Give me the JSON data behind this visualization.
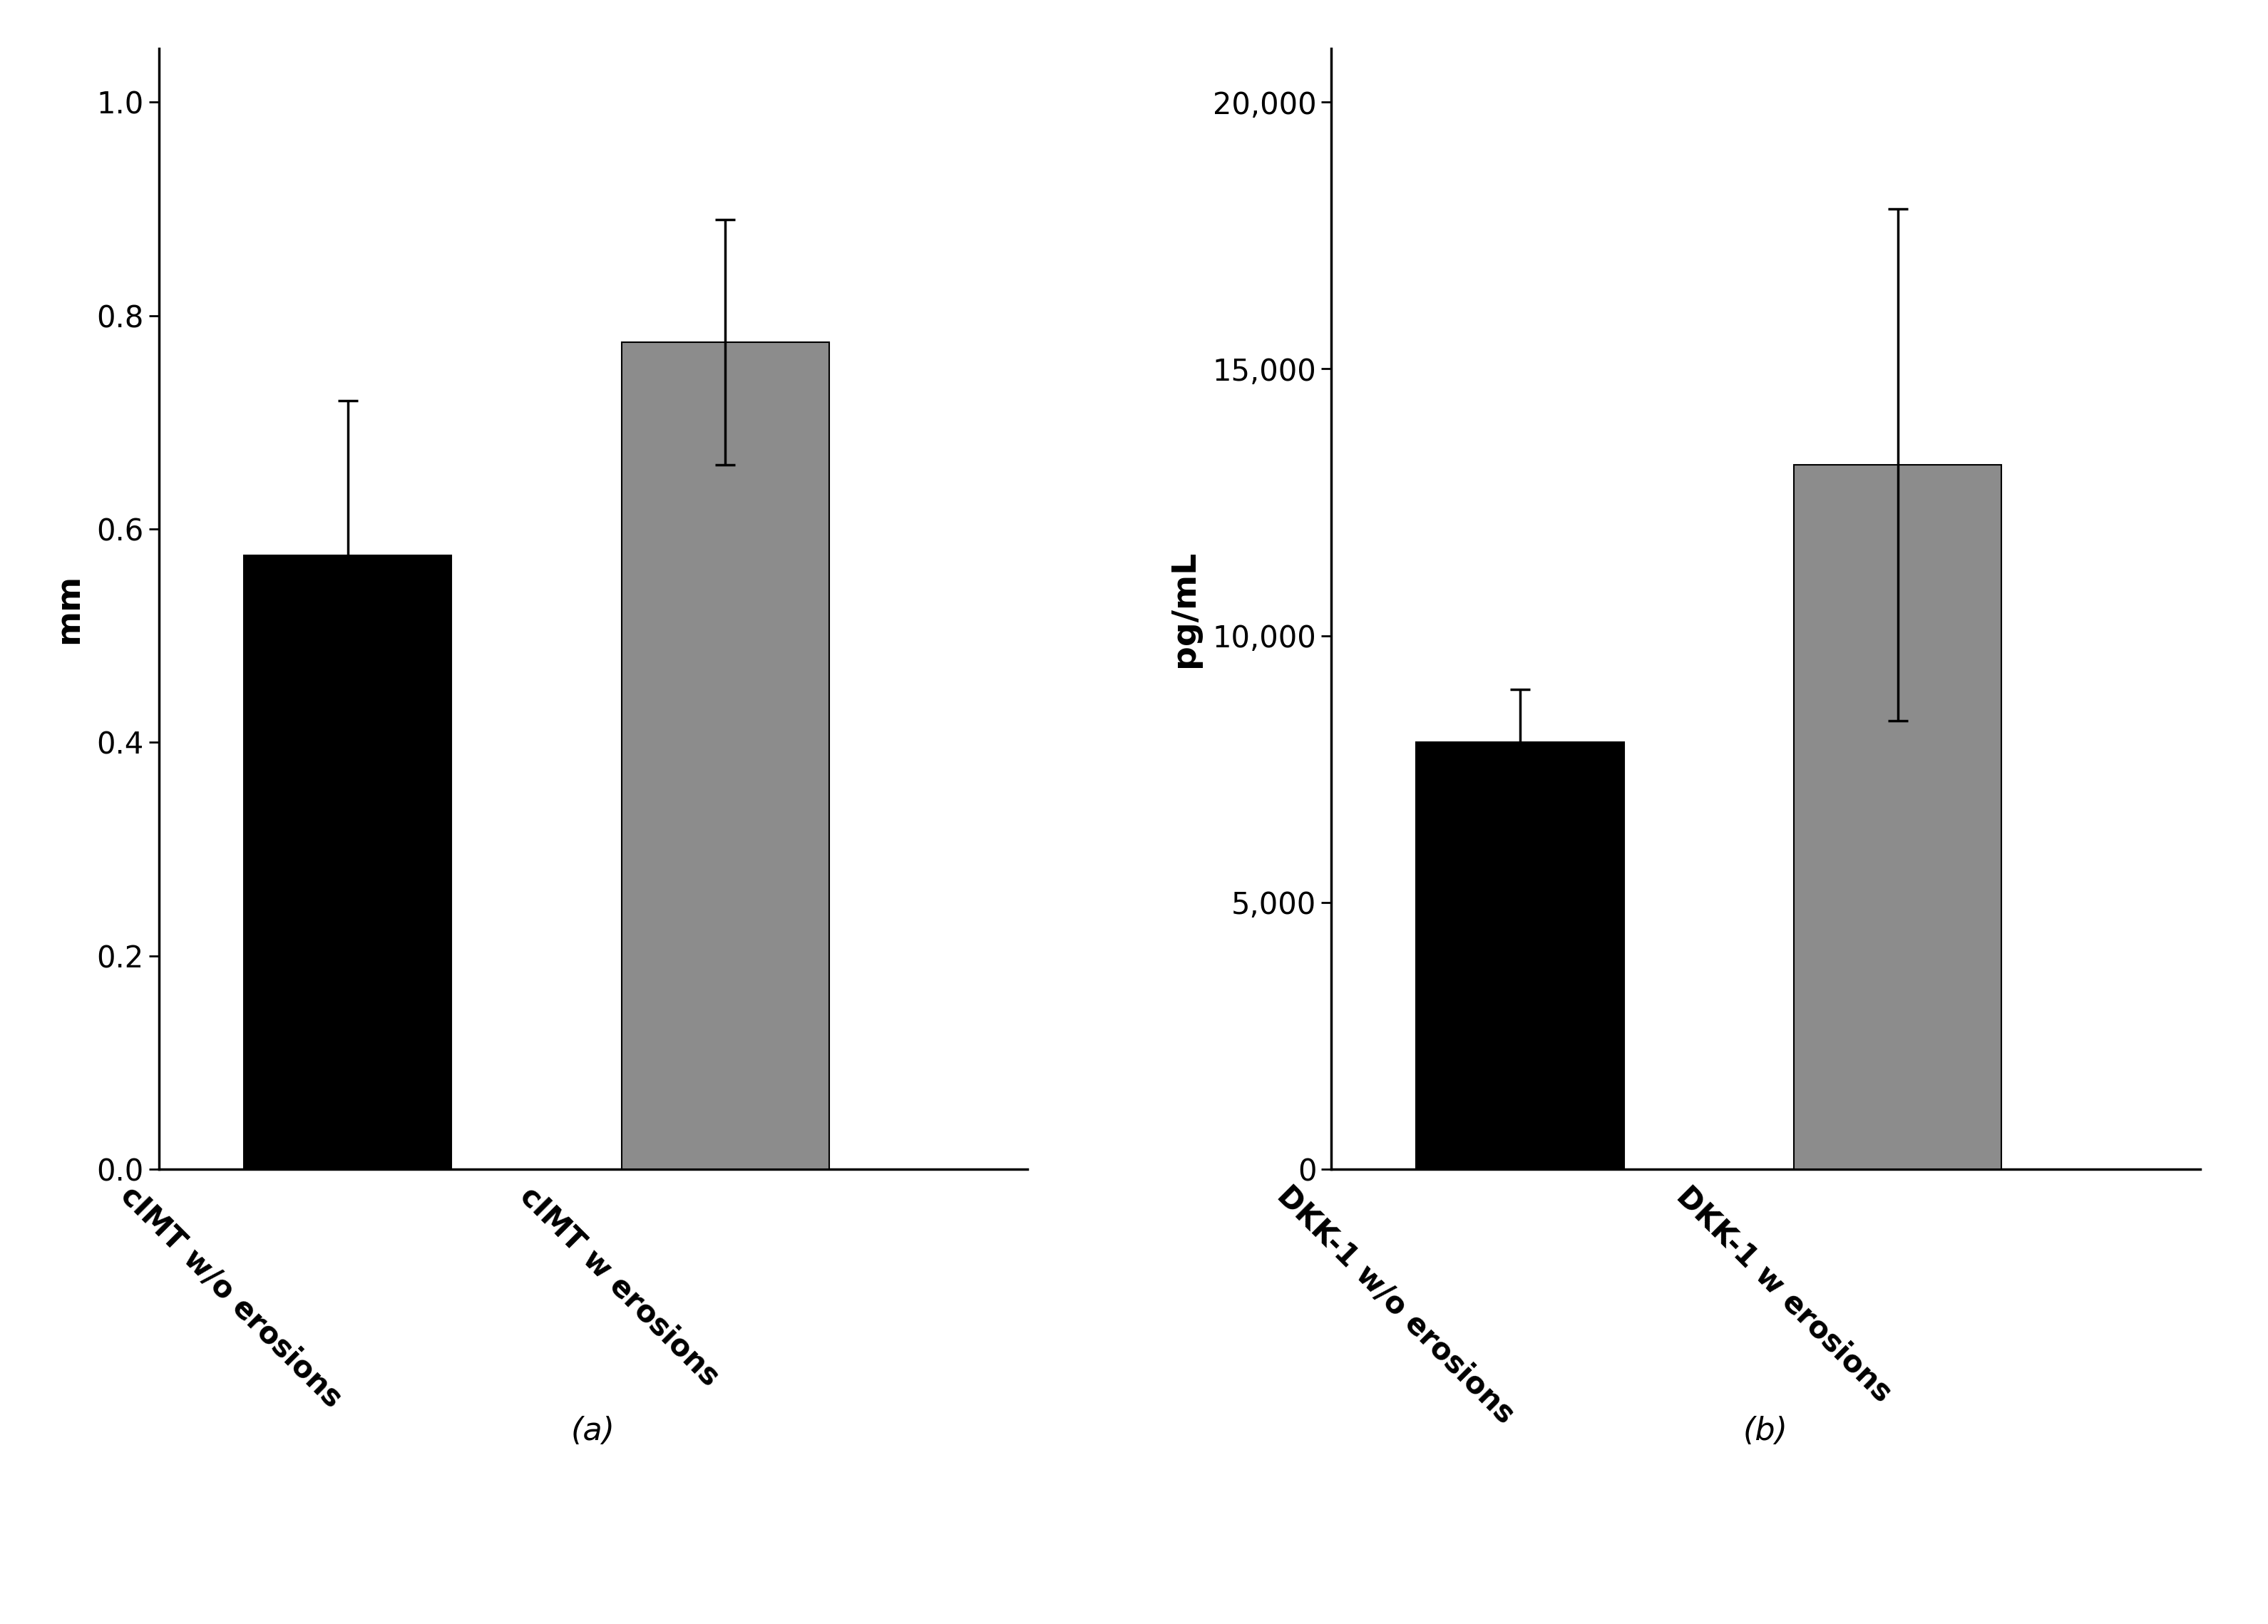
{
  "left_bars": {
    "values": [
      0.575,
      0.775
    ],
    "errors": [
      0.145,
      0.115
    ],
    "colors": [
      "#000000",
      "#8c8c8c"
    ],
    "labels": [
      "cIMT w/o erosions",
      "cIMT w erosions"
    ],
    "ylabel": "mm",
    "ylim": [
      0,
      1.05
    ],
    "yticks": [
      0.0,
      0.2,
      0.4,
      0.6,
      0.8,
      1.0
    ],
    "panel_label": "(a)"
  },
  "right_bars": {
    "values": [
      8000,
      13200
    ],
    "errors": [
      1000,
      4800
    ],
    "colors": [
      "#000000",
      "#8c8c8c"
    ],
    "labels": [
      "DKK-1 w/o erosions",
      "DKK-1 w erosions"
    ],
    "ylabel": "pg/mL",
    "ylim": [
      0,
      21000
    ],
    "yticks": [
      0,
      5000,
      10000,
      15000,
      20000
    ],
    "panel_label": "(b)"
  },
  "bar_width": 0.55,
  "background_color": "#ffffff",
  "tick_fontsize": 30,
  "label_fontsize": 34,
  "panel_label_fontsize": 32,
  "xtick_fontsize": 30,
  "spine_linewidth": 2.5,
  "error_capsize": 10,
  "error_linewidth": 2.5,
  "bar_edgewidth": 1.5,
  "ytick_labelpad": 5
}
